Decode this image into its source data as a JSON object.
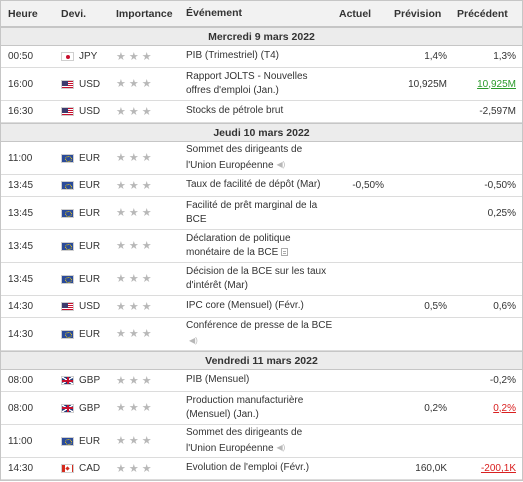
{
  "header": {
    "time": "Heure",
    "currency": "Devi.",
    "importance": "Importance",
    "event": "Événement",
    "actual": "Actuel",
    "forecast": "Prévision",
    "previous": "Précédent"
  },
  "day1": {
    "label": "Mercredi 9 mars 2022",
    "events": [
      {
        "time": "00:50",
        "currency": "JPY",
        "event": "PIB (Trimestriel) (T4)",
        "actual": "",
        "forecast": "1,4%",
        "previous": "1,3%"
      },
      {
        "time": "16:00",
        "currency": "USD",
        "event": "Rapport JOLTS - Nouvelles offres d'emploi (Jan.)",
        "actual": "",
        "forecast": "10,925M",
        "previous": "10,925M"
      },
      {
        "time": "16:30",
        "currency": "USD",
        "event": "Stocks de pétrole brut",
        "actual": "",
        "forecast": "",
        "previous": "-2,597M"
      }
    ]
  },
  "day2": {
    "label": "Jeudi 10 mars 2022",
    "events": [
      {
        "time": "11:00",
        "currency": "EUR",
        "event": "Sommet des dirigeants de l'Union Européenne",
        "actual": "",
        "forecast": "",
        "previous": ""
      },
      {
        "time": "13:45",
        "currency": "EUR",
        "event": "Taux de facilité de dépôt (Mar)",
        "actual": "-0,50%",
        "forecast": "",
        "previous": "-0,50%"
      },
      {
        "time": "13:45",
        "currency": "EUR",
        "event": "Facilité de prêt marginal de la BCE",
        "actual": "",
        "forecast": "",
        "previous": "0,25%"
      },
      {
        "time": "13:45",
        "currency": "EUR",
        "event": "Déclaration de politique monétaire de la BCE",
        "actual": "",
        "forecast": "",
        "previous": ""
      },
      {
        "time": "13:45",
        "currency": "EUR",
        "event": "Décision de la BCE sur les taux d'intérêt (Mar)",
        "actual": "",
        "forecast": "",
        "previous": ""
      },
      {
        "time": "14:30",
        "currency": "USD",
        "event": "IPC core (Mensuel) (Févr.)",
        "actual": "",
        "forecast": "0,5%",
        "previous": "0,6%"
      },
      {
        "time": "14:30",
        "currency": "EUR",
        "event": "Conférence de presse de la BCE",
        "actual": "",
        "forecast": "",
        "previous": ""
      }
    ]
  },
  "day3": {
    "label": "Vendredi 11 mars 2022",
    "events": [
      {
        "time": "08:00",
        "currency": "GBP",
        "event": "PIB (Mensuel)",
        "actual": "",
        "forecast": "",
        "previous": "-0,2%"
      },
      {
        "time": "08:00",
        "currency": "GBP",
        "event": "Production manufacturière (Mensuel) (Jan.)",
        "actual": "",
        "forecast": "0,2%",
        "previous": "0,2%"
      },
      {
        "time": "11:00",
        "currency": "EUR",
        "event": "Sommet des dirigeants de l'Union Européenne",
        "actual": "",
        "forecast": "",
        "previous": ""
      },
      {
        "time": "14:30",
        "currency": "CAD",
        "event": "Evolution de l'emploi (Févr.)",
        "actual": "",
        "forecast": "160,0K",
        "previous": "-200,1K"
      }
    ]
  },
  "colors": {
    "positive": "#2a9a2a",
    "negative": "#d92020",
    "star": "#b8b8b8"
  },
  "icons": {
    "importance": "star-icon",
    "speech": "speaker-icon",
    "document": "document-icon"
  }
}
